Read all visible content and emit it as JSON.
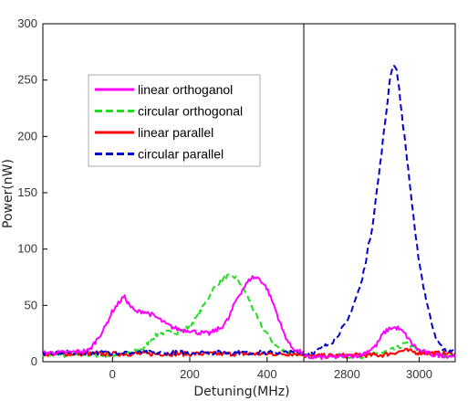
{
  "chart_data": {
    "type": "line",
    "xlabel": "Detuning(MHz)",
    "ylabel": "Power(nW)",
    "ylim": [
      0,
      300
    ],
    "yticks": [
      0,
      50,
      100,
      150,
      200,
      250,
      300
    ],
    "panels": [
      {
        "xlim": [
          -180,
          495
        ],
        "xticks": [
          0,
          200,
          400
        ]
      },
      {
        "xlim": [
          2680,
          3100
        ],
        "xticks": [
          2800,
          3000
        ]
      }
    ],
    "legend": {
      "placement": "upper-left"
    },
    "series": [
      {
        "name": "linear orthoganol",
        "color": "#ff00ff",
        "style": "solid",
        "left": [
          [
            -180,
            8
          ],
          [
            -120,
            8
          ],
          [
            -60,
            10
          ],
          [
            -20,
            30
          ],
          [
            0,
            45
          ],
          [
            25,
            56
          ],
          [
            30,
            58
          ],
          [
            45,
            50
          ],
          [
            60,
            44
          ],
          [
            80,
            45
          ],
          [
            100,
            42
          ],
          [
            120,
            38
          ],
          [
            140,
            33
          ],
          [
            160,
            30
          ],
          [
            180,
            28
          ],
          [
            200,
            28
          ],
          [
            220,
            26
          ],
          [
            250,
            25
          ],
          [
            280,
            30
          ],
          [
            300,
            38
          ],
          [
            320,
            55
          ],
          [
            340,
            66
          ],
          [
            360,
            75
          ],
          [
            380,
            74
          ],
          [
            400,
            65
          ],
          [
            420,
            48
          ],
          [
            440,
            28
          ],
          [
            460,
            14
          ],
          [
            480,
            9
          ],
          [
            495,
            8
          ]
        ],
        "right": [
          [
            2680,
            4
          ],
          [
            2760,
            4
          ],
          [
            2840,
            6
          ],
          [
            2880,
            14
          ],
          [
            2900,
            25
          ],
          [
            2920,
            30
          ],
          [
            2940,
            30
          ],
          [
            2960,
            25
          ],
          [
            2980,
            16
          ],
          [
            3000,
            10
          ],
          [
            3040,
            6
          ],
          [
            3100,
            5
          ]
        ]
      },
      {
        "name": "circular orthogonal",
        "color": "#22dd22",
        "style": "dashed",
        "left": [
          [
            -180,
            6
          ],
          [
            0,
            6
          ],
          [
            50,
            8
          ],
          [
            80,
            12
          ],
          [
            100,
            20
          ],
          [
            120,
            25
          ],
          [
            140,
            26
          ],
          [
            160,
            26
          ],
          [
            180,
            27
          ],
          [
            200,
            32
          ],
          [
            220,
            40
          ],
          [
            240,
            52
          ],
          [
            260,
            64
          ],
          [
            280,
            72
          ],
          [
            300,
            76
          ],
          [
            320,
            75
          ],
          [
            340,
            65
          ],
          [
            360,
            50
          ],
          [
            380,
            35
          ],
          [
            400,
            25
          ],
          [
            420,
            15
          ],
          [
            440,
            10
          ],
          [
            495,
            6
          ]
        ],
        "right": [
          [
            2680,
            5
          ],
          [
            2850,
            5
          ],
          [
            2900,
            8
          ],
          [
            2940,
            12
          ],
          [
            2960,
            16
          ],
          [
            2980,
            14
          ],
          [
            3000,
            8
          ],
          [
            3100,
            5
          ]
        ]
      },
      {
        "name": "linear parallel",
        "color": "#ff0000",
        "style": "solid",
        "left": [
          [
            -180,
            7
          ],
          [
            495,
            7
          ]
        ],
        "right": [
          [
            2680,
            5
          ],
          [
            2900,
            6
          ],
          [
            2960,
            10
          ],
          [
            3000,
            8
          ],
          [
            3100,
            7
          ]
        ]
      },
      {
        "name": "circular parallel",
        "color": "#0000cc",
        "style": "dashed",
        "left": [
          [
            -180,
            8
          ],
          [
            495,
            8
          ]
        ],
        "right": [
          [
            2680,
            6
          ],
          [
            2720,
            10
          ],
          [
            2760,
            18
          ],
          [
            2800,
            35
          ],
          [
            2840,
            70
          ],
          [
            2870,
            120
          ],
          [
            2890,
            170
          ],
          [
            2910,
            225
          ],
          [
            2920,
            255
          ],
          [
            2930,
            265
          ],
          [
            2940,
            255
          ],
          [
            2950,
            225
          ],
          [
            2970,
            170
          ],
          [
            2990,
            110
          ],
          [
            3010,
            70
          ],
          [
            3030,
            40
          ],
          [
            3050,
            18
          ],
          [
            3070,
            10
          ],
          [
            3100,
            8
          ]
        ]
      }
    ]
  }
}
